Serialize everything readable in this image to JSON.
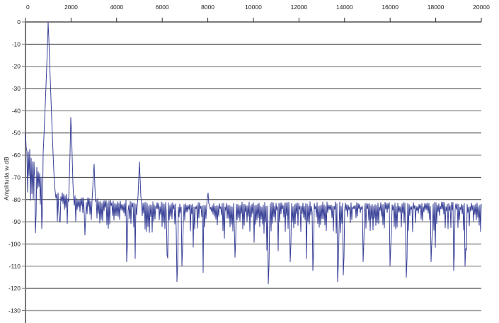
{
  "chart_data": {
    "type": "line",
    "title": "",
    "xlabel": "",
    "ylabel": "Amplituda w dB",
    "legend": "none",
    "grid": "horizontal",
    "xlim": [
      0,
      20000
    ],
    "ylim": [
      -130,
      0
    ],
    "x_ticks": [
      0,
      2000,
      4000,
      6000,
      8000,
      10000,
      12000,
      14000,
      16000,
      18000,
      20000
    ],
    "y_ticks": [
      0,
      -10,
      -20,
      -30,
      -40,
      -50,
      -60,
      -70,
      -80,
      -90,
      -100,
      -110,
      -120,
      -130
    ],
    "series_color": "#3b4398",
    "axis_color": "#2b2b2b",
    "y_axis_color": "#7a7a7a",
    "dark_gridline_color": "#3a3a3a",
    "gray_gridline_color": "#9a9a9a",
    "dark_gridlines": [
      -10,
      -30,
      -50,
      -70,
      -80,
      -100,
      -120
    ],
    "gray_gridlines": [
      -20,
      -40,
      -60,
      -90,
      -110,
      -130
    ],
    "spectrum_model": {
      "description": "FFT amplitude spectrum: 1 kHz fundamental at 0 dB with harmonics, noise floor near -85 dB",
      "seed": 12,
      "start_value": -50,
      "noise_top_offset": 5,
      "noise_spread": 7,
      "lowfreq_limit_hz": 900,
      "lowfreq_spread_boost": 1.9,
      "deep_spike_probability": 0.05,
      "deep_spike_extra_range": [
        6,
        22
      ],
      "min_db": -124,
      "floor_points": [
        [
          0,
          -57
        ],
        [
          250,
          -64
        ],
        [
          500,
          -70
        ],
        [
          800,
          -76
        ],
        [
          1300,
          -81
        ],
        [
          2500,
          -84
        ],
        [
          6000,
          -86
        ],
        [
          11000,
          -86
        ],
        [
          20000,
          -86
        ]
      ],
      "peaks": [
        {
          "freq": 1000,
          "db": 0,
          "skirt_hz": 320,
          "shape": 1.25
        },
        {
          "freq": 2000,
          "db": -43,
          "skirt_hz": 110,
          "shape": 1.0
        },
        {
          "freq": 3000,
          "db": -64,
          "skirt_hz": 90,
          "shape": 1.0
        },
        {
          "freq": 5000,
          "db": -63,
          "skirt_hz": 90,
          "shape": 1.0
        },
        {
          "freq": 8000,
          "db": -77,
          "skirt_hz": 80,
          "shape": 1.0
        }
      ],
      "notches": [
        [
          430,
          -95
        ],
        [
          700,
          -93
        ],
        [
          1500,
          -90
        ],
        [
          2600,
          -96
        ],
        [
          4450,
          -108
        ],
        [
          6200,
          -105
        ],
        [
          6650,
          -117
        ],
        [
          6850,
          -110
        ],
        [
          9200,
          -106
        ],
        [
          10650,
          -118
        ],
        [
          11600,
          -108
        ],
        [
          12600,
          -112
        ],
        [
          13700,
          -117
        ],
        [
          13950,
          -114
        ],
        [
          14800,
          -108
        ],
        [
          16000,
          -110
        ],
        [
          16700,
          -115
        ],
        [
          17800,
          -108
        ],
        [
          18800,
          -112
        ],
        [
          19300,
          -110
        ]
      ]
    }
  }
}
